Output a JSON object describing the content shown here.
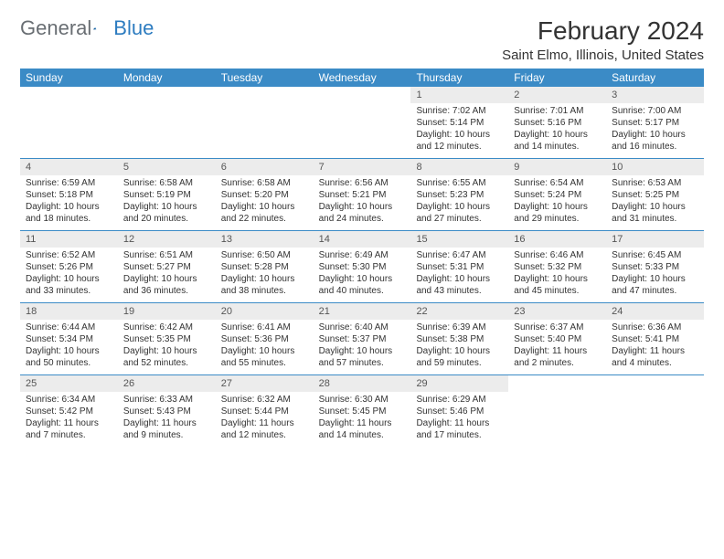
{
  "logo": {
    "text1": "General",
    "text2": "Blue"
  },
  "title": "February 2024",
  "location": "Saint Elmo, Illinois, United States",
  "colors": {
    "header_bg": "#3b8bc6",
    "header_text": "#ffffff",
    "daynum_bg": "#ececec",
    "logo_gray": "#696e73",
    "logo_blue": "#2d7cc0",
    "border": "#3b8bc6"
  },
  "day_names": [
    "Sunday",
    "Monday",
    "Tuesday",
    "Wednesday",
    "Thursday",
    "Friday",
    "Saturday"
  ],
  "weeks": [
    [
      {
        "empty": true
      },
      {
        "empty": true
      },
      {
        "empty": true
      },
      {
        "empty": true
      },
      {
        "day": "1",
        "sunrise": "Sunrise: 7:02 AM",
        "sunset": "Sunset: 5:14 PM",
        "daylight1": "Daylight: 10 hours",
        "daylight2": "and 12 minutes."
      },
      {
        "day": "2",
        "sunrise": "Sunrise: 7:01 AM",
        "sunset": "Sunset: 5:16 PM",
        "daylight1": "Daylight: 10 hours",
        "daylight2": "and 14 minutes."
      },
      {
        "day": "3",
        "sunrise": "Sunrise: 7:00 AM",
        "sunset": "Sunset: 5:17 PM",
        "daylight1": "Daylight: 10 hours",
        "daylight2": "and 16 minutes."
      }
    ],
    [
      {
        "day": "4",
        "sunrise": "Sunrise: 6:59 AM",
        "sunset": "Sunset: 5:18 PM",
        "daylight1": "Daylight: 10 hours",
        "daylight2": "and 18 minutes."
      },
      {
        "day": "5",
        "sunrise": "Sunrise: 6:58 AM",
        "sunset": "Sunset: 5:19 PM",
        "daylight1": "Daylight: 10 hours",
        "daylight2": "and 20 minutes."
      },
      {
        "day": "6",
        "sunrise": "Sunrise: 6:58 AM",
        "sunset": "Sunset: 5:20 PM",
        "daylight1": "Daylight: 10 hours",
        "daylight2": "and 22 minutes."
      },
      {
        "day": "7",
        "sunrise": "Sunrise: 6:56 AM",
        "sunset": "Sunset: 5:21 PM",
        "daylight1": "Daylight: 10 hours",
        "daylight2": "and 24 minutes."
      },
      {
        "day": "8",
        "sunrise": "Sunrise: 6:55 AM",
        "sunset": "Sunset: 5:23 PM",
        "daylight1": "Daylight: 10 hours",
        "daylight2": "and 27 minutes."
      },
      {
        "day": "9",
        "sunrise": "Sunrise: 6:54 AM",
        "sunset": "Sunset: 5:24 PM",
        "daylight1": "Daylight: 10 hours",
        "daylight2": "and 29 minutes."
      },
      {
        "day": "10",
        "sunrise": "Sunrise: 6:53 AM",
        "sunset": "Sunset: 5:25 PM",
        "daylight1": "Daylight: 10 hours",
        "daylight2": "and 31 minutes."
      }
    ],
    [
      {
        "day": "11",
        "sunrise": "Sunrise: 6:52 AM",
        "sunset": "Sunset: 5:26 PM",
        "daylight1": "Daylight: 10 hours",
        "daylight2": "and 33 minutes."
      },
      {
        "day": "12",
        "sunrise": "Sunrise: 6:51 AM",
        "sunset": "Sunset: 5:27 PM",
        "daylight1": "Daylight: 10 hours",
        "daylight2": "and 36 minutes."
      },
      {
        "day": "13",
        "sunrise": "Sunrise: 6:50 AM",
        "sunset": "Sunset: 5:28 PM",
        "daylight1": "Daylight: 10 hours",
        "daylight2": "and 38 minutes."
      },
      {
        "day": "14",
        "sunrise": "Sunrise: 6:49 AM",
        "sunset": "Sunset: 5:30 PM",
        "daylight1": "Daylight: 10 hours",
        "daylight2": "and 40 minutes."
      },
      {
        "day": "15",
        "sunrise": "Sunrise: 6:47 AM",
        "sunset": "Sunset: 5:31 PM",
        "daylight1": "Daylight: 10 hours",
        "daylight2": "and 43 minutes."
      },
      {
        "day": "16",
        "sunrise": "Sunrise: 6:46 AM",
        "sunset": "Sunset: 5:32 PM",
        "daylight1": "Daylight: 10 hours",
        "daylight2": "and 45 minutes."
      },
      {
        "day": "17",
        "sunrise": "Sunrise: 6:45 AM",
        "sunset": "Sunset: 5:33 PM",
        "daylight1": "Daylight: 10 hours",
        "daylight2": "and 47 minutes."
      }
    ],
    [
      {
        "day": "18",
        "sunrise": "Sunrise: 6:44 AM",
        "sunset": "Sunset: 5:34 PM",
        "daylight1": "Daylight: 10 hours",
        "daylight2": "and 50 minutes."
      },
      {
        "day": "19",
        "sunrise": "Sunrise: 6:42 AM",
        "sunset": "Sunset: 5:35 PM",
        "daylight1": "Daylight: 10 hours",
        "daylight2": "and 52 minutes."
      },
      {
        "day": "20",
        "sunrise": "Sunrise: 6:41 AM",
        "sunset": "Sunset: 5:36 PM",
        "daylight1": "Daylight: 10 hours",
        "daylight2": "and 55 minutes."
      },
      {
        "day": "21",
        "sunrise": "Sunrise: 6:40 AM",
        "sunset": "Sunset: 5:37 PM",
        "daylight1": "Daylight: 10 hours",
        "daylight2": "and 57 minutes."
      },
      {
        "day": "22",
        "sunrise": "Sunrise: 6:39 AM",
        "sunset": "Sunset: 5:38 PM",
        "daylight1": "Daylight: 10 hours",
        "daylight2": "and 59 minutes."
      },
      {
        "day": "23",
        "sunrise": "Sunrise: 6:37 AM",
        "sunset": "Sunset: 5:40 PM",
        "daylight1": "Daylight: 11 hours",
        "daylight2": "and 2 minutes."
      },
      {
        "day": "24",
        "sunrise": "Sunrise: 6:36 AM",
        "sunset": "Sunset: 5:41 PM",
        "daylight1": "Daylight: 11 hours",
        "daylight2": "and 4 minutes."
      }
    ],
    [
      {
        "day": "25",
        "sunrise": "Sunrise: 6:34 AM",
        "sunset": "Sunset: 5:42 PM",
        "daylight1": "Daylight: 11 hours",
        "daylight2": "and 7 minutes."
      },
      {
        "day": "26",
        "sunrise": "Sunrise: 6:33 AM",
        "sunset": "Sunset: 5:43 PM",
        "daylight1": "Daylight: 11 hours",
        "daylight2": "and 9 minutes."
      },
      {
        "day": "27",
        "sunrise": "Sunrise: 6:32 AM",
        "sunset": "Sunset: 5:44 PM",
        "daylight1": "Daylight: 11 hours",
        "daylight2": "and 12 minutes."
      },
      {
        "day": "28",
        "sunrise": "Sunrise: 6:30 AM",
        "sunset": "Sunset: 5:45 PM",
        "daylight1": "Daylight: 11 hours",
        "daylight2": "and 14 minutes."
      },
      {
        "day": "29",
        "sunrise": "Sunrise: 6:29 AM",
        "sunset": "Sunset: 5:46 PM",
        "daylight1": "Daylight: 11 hours",
        "daylight2": "and 17 minutes."
      },
      {
        "empty": true
      },
      {
        "empty": true
      }
    ]
  ]
}
